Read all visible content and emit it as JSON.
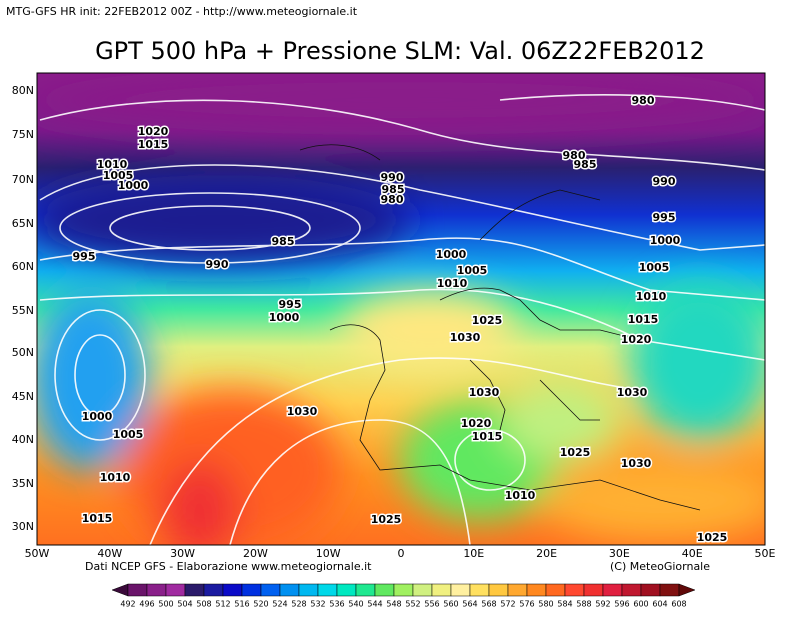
{
  "header": {
    "caption": "MTG-GFS HR init: 22FEB2012 00Z - http://www.meteogiornale.it",
    "title": "GPT 500 hPa + Pressione SLM: Val. 06Z22FEB2012"
  },
  "latitude_labels": [
    "80N",
    "75N",
    "70N",
    "65N",
    "60N",
    "55N",
    "50N",
    "45N",
    "40N",
    "35N",
    "30N"
  ],
  "longitude_labels": [
    "50W",
    "40W",
    "30W",
    "20W",
    "10W",
    "0",
    "10E",
    "20E",
    "30E",
    "40E",
    "50E"
  ],
  "isobar_labels": [
    "1020",
    "1015",
    "1010",
    "1005",
    "1000",
    "990",
    "985",
    "980",
    "985",
    "990",
    "995",
    "980",
    "980",
    "985",
    "990",
    "995",
    "1000",
    "1005",
    "1010",
    "1015",
    "1020",
    "1000",
    "1005",
    "1010",
    "1025",
    "995",
    "1000",
    "1030",
    "1030",
    "1030",
    "1030",
    "1020",
    "1015",
    "1025",
    "1030",
    "1010",
    "1025",
    "1025",
    "1010",
    "1015",
    "1005",
    "1000"
  ],
  "footer": {
    "source": "Dati NCEP GFS - Elaborazione www.meteogiornale.it",
    "copyright": "(C) MeteoGiornale"
  },
  "colorbar": {
    "ticks": [
      492,
      496,
      500,
      504,
      508,
      512,
      516,
      520,
      524,
      528,
      532,
      536,
      540,
      544,
      548,
      552,
      556,
      560,
      564,
      568,
      572,
      576,
      580,
      584,
      588,
      592,
      596,
      600,
      604,
      608
    ],
    "colors": [
      "#3a0a3a",
      "#6a146a",
      "#8a208a",
      "#a02aa0",
      "#2a1a6a",
      "#1a1aa0",
      "#0a0ac8",
      "#0030e0",
      "#0060f0",
      "#0090f0",
      "#00b8f0",
      "#00d8e8",
      "#00e8c0",
      "#20e890",
      "#60e860",
      "#a0f060",
      "#d0f080",
      "#f0f080",
      "#fff0a0",
      "#ffe060",
      "#ffc840",
      "#ffa830",
      "#ff8820",
      "#ff6820",
      "#ff4830",
      "#f03030",
      "#e02040",
      "#c01830",
      "#a01020",
      "#801010",
      "#600808"
    ]
  }
}
